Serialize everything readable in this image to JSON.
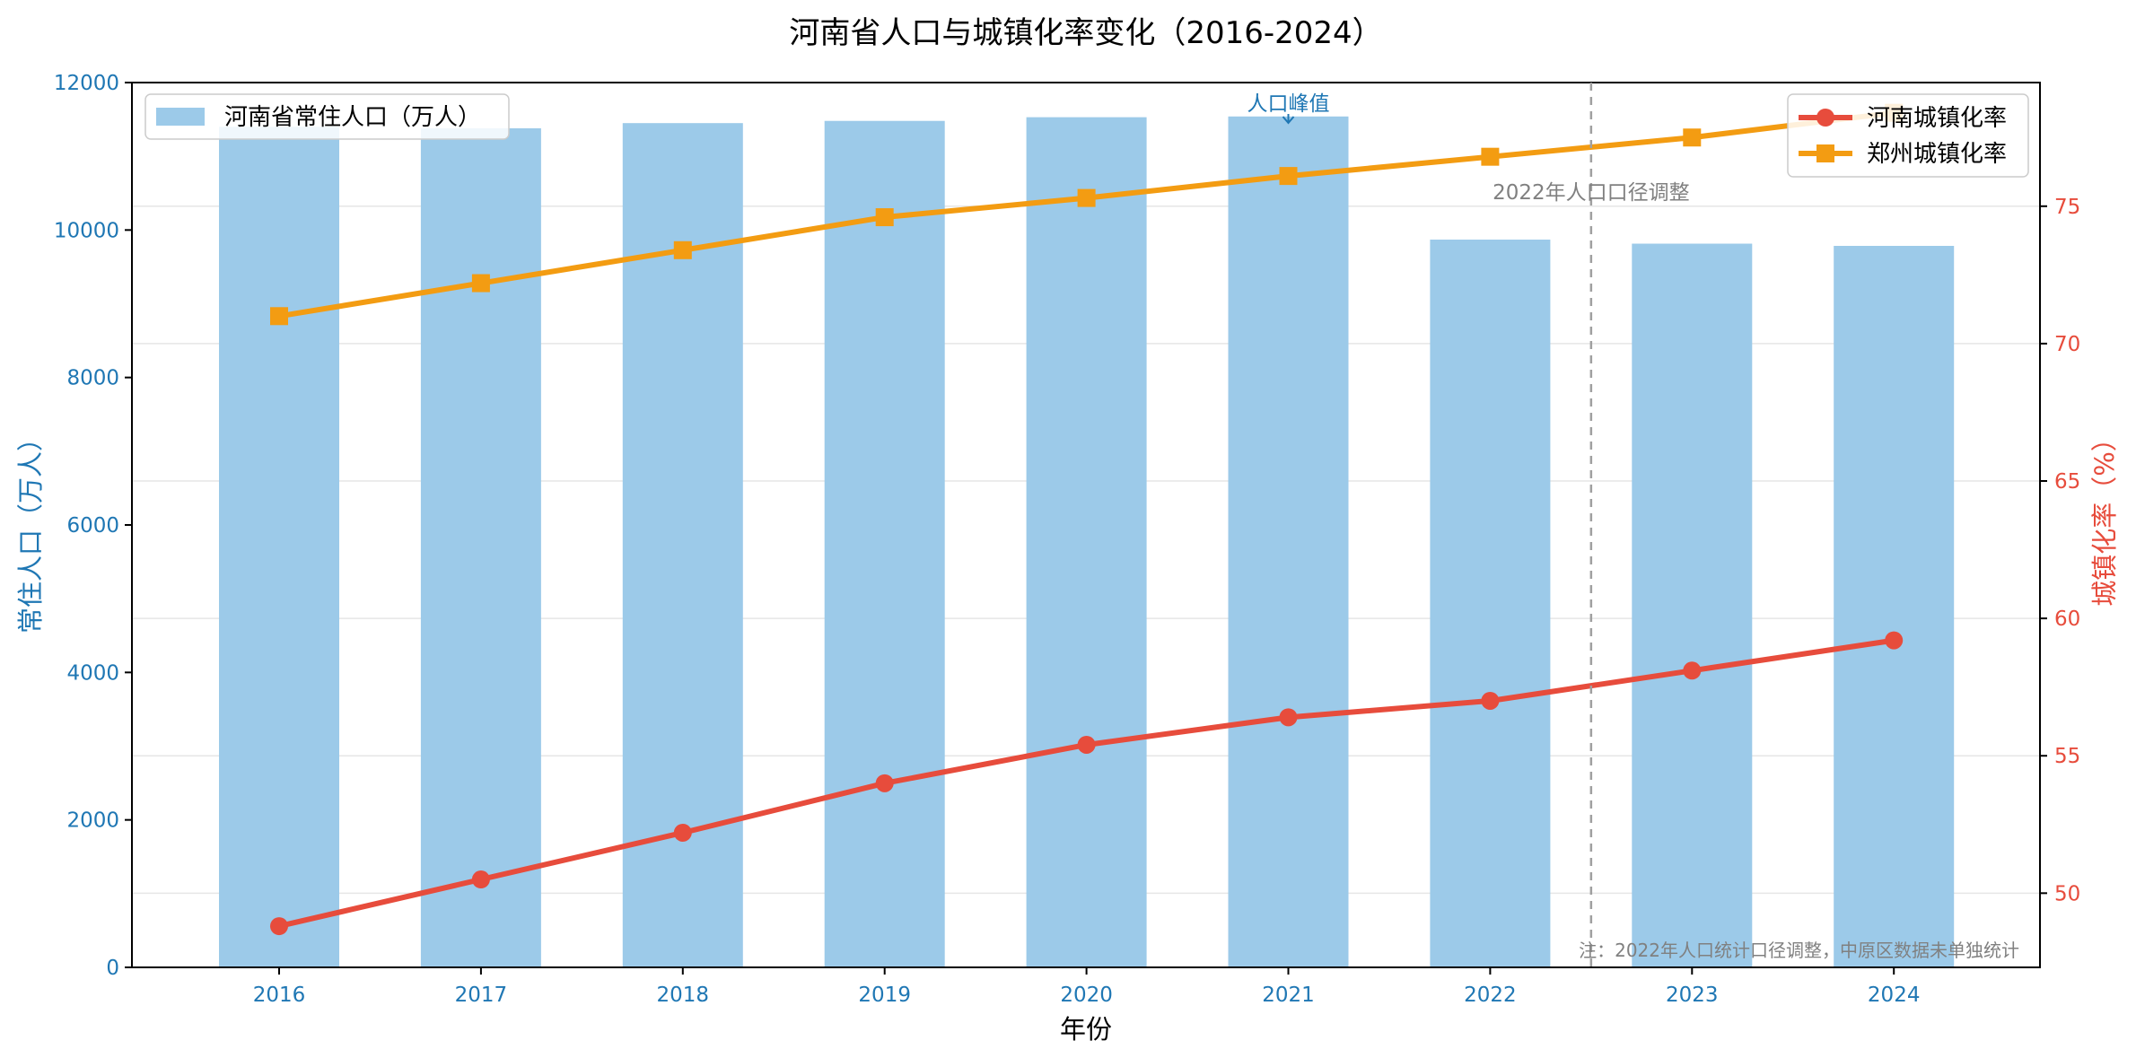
{
  "chart_data": {
    "type": "bar",
    "title": "河南省人口与城镇化率变化（2016-2024）",
    "xlabel": "年份",
    "ylabel_left": "常住人口（万人）",
    "ylabel_right": "城镇化率（%）",
    "categories": [
      "2016",
      "2017",
      "2018",
      "2019",
      "2020",
      "2021",
      "2022",
      "2023",
      "2024"
    ],
    "ylim_left": [
      0,
      12000
    ],
    "yticks_left": [
      "0",
      "2000",
      "4000",
      "6000",
      "8000",
      "10000",
      "12000"
    ],
    "ylim_right": [
      47.3,
      79.5
    ],
    "yticks_right": [
      "50",
      "55",
      "60",
      "65",
      "70",
      "75"
    ],
    "grid": true,
    "series": [
      {
        "name": "河南省常住人口（万人）",
        "type": "bar",
        "axis": "left",
        "color": "#9ccae9",
        "values": [
          11400,
          11380,
          11450,
          11480,
          11530,
          11540,
          9870,
          9815,
          9785
        ]
      },
      {
        "name": "河南城镇化率",
        "type": "line",
        "axis": "right",
        "marker": "circle",
        "color": "#e74c3c",
        "values": [
          48.8,
          50.5,
          52.2,
          54.0,
          55.4,
          56.4,
          57.0,
          58.1,
          59.2
        ]
      },
      {
        "name": "郑州城镇化率",
        "type": "line",
        "axis": "right",
        "marker": "square",
        "color": "#f39c12",
        "values": [
          71.0,
          72.2,
          73.4,
          74.6,
          75.3,
          76.1,
          76.8,
          77.5,
          78.4
        ]
      }
    ],
    "annotations": {
      "peak_label": "人口峰值",
      "peak_category": "2021",
      "adjust_label": "2022年人口口径调整",
      "note": "注：2022年人口统计口径调整，中原区数据未单独统计"
    },
    "legend_left": "upper-left",
    "legend_right": "upper-right"
  },
  "colors": {
    "axis_left": "#1f77b4",
    "axis_right": "#e74c3c",
    "grid": "#e6e6e6",
    "adjust_line": "#a0a0a0",
    "annot_gray": "#808080"
  }
}
